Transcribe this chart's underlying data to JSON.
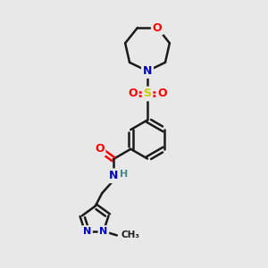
{
  "background_color": "#e8e8e8",
  "bond_color": "#1a1a1a",
  "atom_colors": {
    "O": "#ff0000",
    "N": "#0000cc",
    "S": "#cccc00",
    "C": "#1a1a1a",
    "H": "#448888"
  },
  "figsize": [
    3.0,
    3.0
  ],
  "dpi": 100,
  "xlim": [
    0,
    10
  ],
  "ylim": [
    0,
    10
  ]
}
